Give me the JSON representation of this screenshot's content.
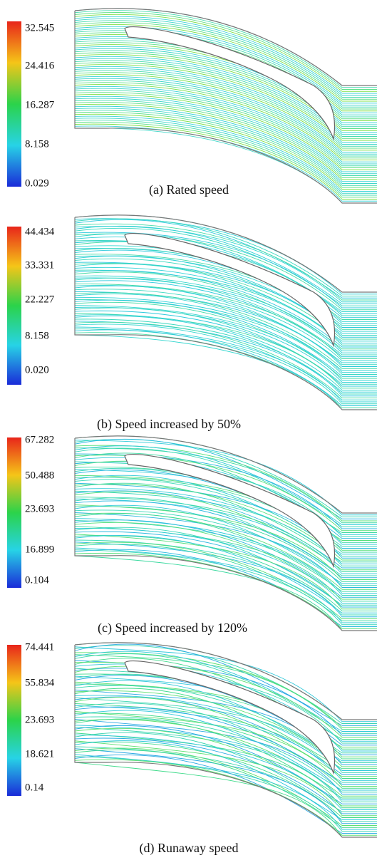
{
  "panels": [
    {
      "caption": "(a) Rated speed",
      "colorbar_labels": [
        "32.545",
        "24.416",
        "16.287",
        "8.158",
        "0.029"
      ]
    },
    {
      "caption": "(b) Speed increased by 50%",
      "colorbar_labels": [
        "44.434",
        "33.331",
        "22.227",
        "8.158",
        "0.020"
      ]
    },
    {
      "caption": "(c) Speed increased by 120%",
      "colorbar_labels": [
        "67.282",
        "50.488",
        "23.693",
        "16.899",
        "0.104"
      ]
    },
    {
      "caption": "(d) Runaway speed",
      "colorbar_labels": [
        "74.441",
        "55.834",
        "23.693",
        "18.621",
        "0.14"
      ]
    }
  ]
}
